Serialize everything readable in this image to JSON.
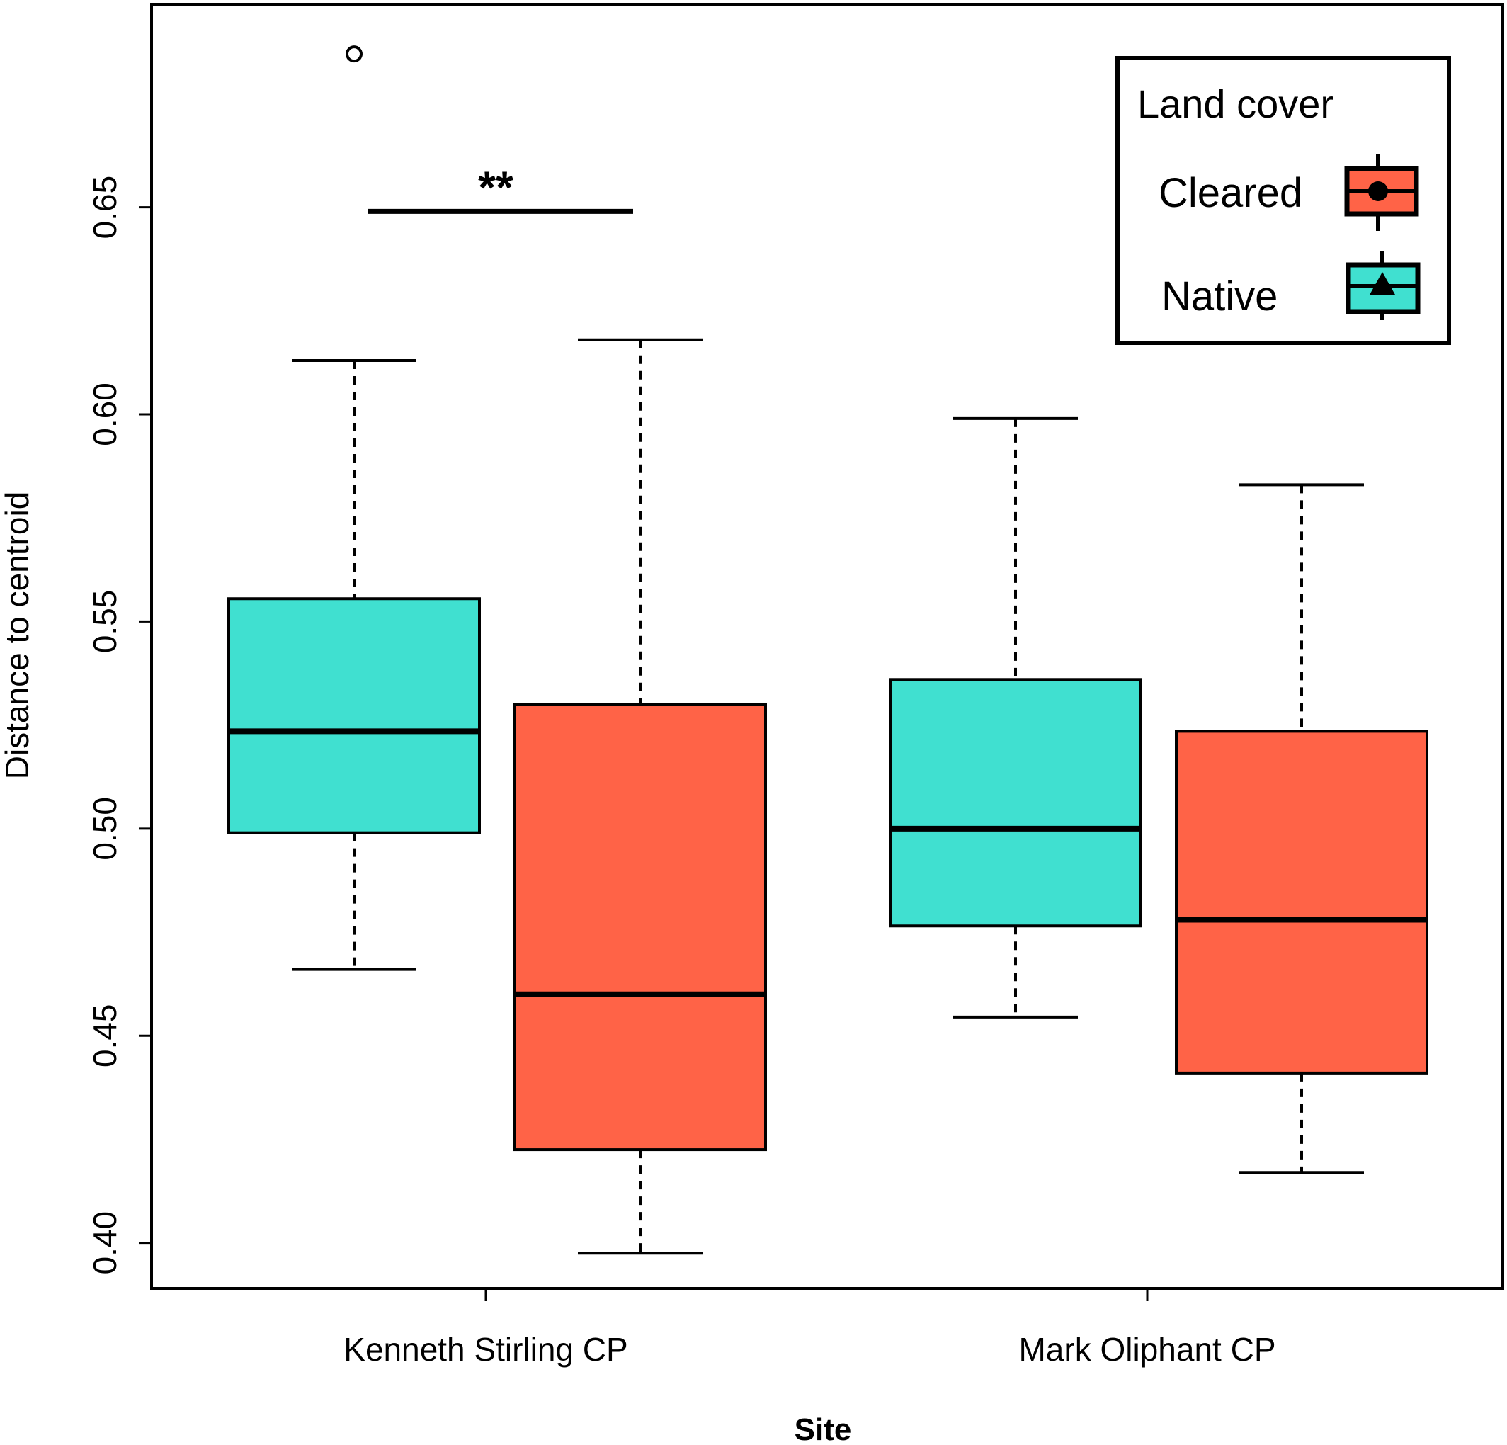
{
  "chart_data": {
    "type": "boxplot",
    "xlabel": "Site",
    "ylabel": "Distance to centroid",
    "ylim": [
      0.389,
      0.699
    ],
    "yticks": [
      0.4,
      0.45,
      0.5,
      0.55,
      0.6,
      0.65
    ],
    "ytick_labels": [
      "0.40",
      "0.45",
      "0.50",
      "0.55",
      "0.60",
      "0.65"
    ],
    "categories": [
      "Kenneth Stirling CP",
      "Mark Oliphant CP"
    ],
    "colors": {
      "Native": "#40E0D0",
      "Cleared": "#FF6347"
    },
    "boxes": [
      {
        "site": "Kenneth Stirling CP",
        "group": "Native",
        "min": 0.466,
        "q1": 0.499,
        "median": 0.5235,
        "q3": 0.5555,
        "max": 0.613,
        "outliers": [
          0.687
        ]
      },
      {
        "site": "Kenneth Stirling CP",
        "group": "Cleared",
        "min": 0.3975,
        "q1": 0.4225,
        "median": 0.46,
        "q3": 0.53,
        "max": 0.618,
        "outliers": []
      },
      {
        "site": "Mark Oliphant CP",
        "group": "Native",
        "min": 0.4545,
        "q1": 0.4765,
        "median": 0.5,
        "q3": 0.536,
        "max": 0.599,
        "outliers": []
      },
      {
        "site": "Mark Oliphant CP",
        "group": "Cleared",
        "min": 0.417,
        "q1": 0.441,
        "median": 0.478,
        "q3": 0.5235,
        "max": 0.583,
        "outliers": []
      }
    ],
    "annotations": [
      {
        "text": "**",
        "site": "Kenneth Stirling CP",
        "y": 0.649
      }
    ],
    "legend": {
      "title": "Land cover",
      "position": "top-right",
      "entries": [
        {
          "label": "Cleared",
          "color": "#FF6347",
          "symbol": "circle"
        },
        {
          "label": "Native",
          "color": "#40E0D0",
          "symbol": "triangle"
        }
      ]
    },
    "grid": false
  }
}
